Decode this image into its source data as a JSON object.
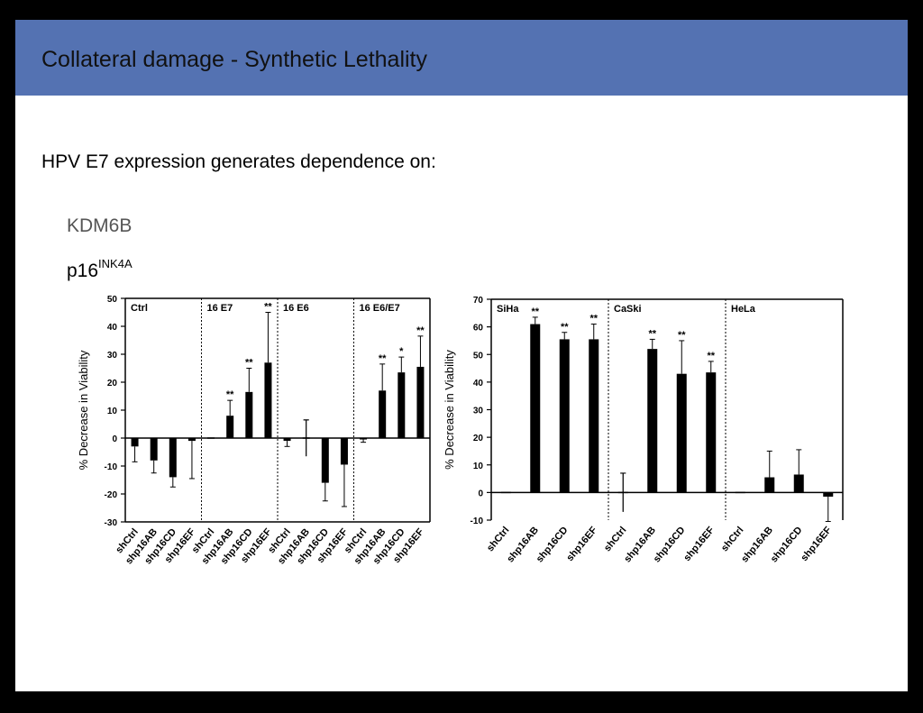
{
  "slide": {
    "title": "Collateral damage - Synthetic Lethality",
    "subtitle": "HPV E7 expression generates dependence  on:",
    "gene_1": "KDM6B",
    "gene_2_base": "p16",
    "gene_2_sup": "INK4A",
    "colors": {
      "title_bar": "#5472b2",
      "bars": "#000000",
      "background": "#ffffff"
    }
  },
  "chart_data": [
    {
      "type": "bar",
      "title": "",
      "ylabel": "% Decrease in Viability",
      "ylim": [
        -30,
        50
      ],
      "yticks": [
        -30,
        -20,
        -10,
        0,
        10,
        20,
        30,
        40,
        50
      ],
      "panels": [
        {
          "label": "Ctrl",
          "categories": [
            "shCtrl",
            "shp16AB",
            "shp16CD",
            "shp16EF"
          ],
          "values": [
            -3,
            -8,
            -14,
            -1
          ],
          "errors": [
            5.5,
            4.5,
            3.5,
            13.5
          ],
          "significance": [
            "",
            "",
            "",
            ""
          ]
        },
        {
          "label": "16 E7",
          "categories": [
            "shCtrl",
            "shp16AB",
            "shp16CD",
            "shp16EF"
          ],
          "values": [
            0,
            8,
            16.5,
            27
          ],
          "errors": [
            0,
            5.5,
            8.5,
            18
          ],
          "significance": [
            "",
            "**",
            "**",
            "**"
          ]
        },
        {
          "label": "16 E6",
          "categories": [
            "shCtrl",
            "shp16AB",
            "shp16CD",
            "shp16EF"
          ],
          "values": [
            -1,
            0,
            -16,
            -9.5
          ],
          "errors": [
            2,
            6.5,
            6.5,
            15
          ],
          "significance": [
            "",
            "",
            "",
            ""
          ]
        },
        {
          "label": "16 E6/E7",
          "categories": [
            "shCtrl",
            "shp16AB",
            "shp16CD",
            "shp16EF"
          ],
          "values": [
            -0.5,
            17,
            23.5,
            25.5
          ],
          "errors": [
            1,
            9.5,
            5.5,
            11
          ],
          "significance": [
            "",
            "**",
            "*",
            "**"
          ]
        }
      ]
    },
    {
      "type": "bar",
      "title": "",
      "ylabel": "% Decrease in Viability",
      "ylim": [
        -10,
        70
      ],
      "yticks": [
        -10,
        0,
        10,
        20,
        30,
        40,
        50,
        60,
        70
      ],
      "panels": [
        {
          "label": "SiHa",
          "categories": [
            "shCtrl",
            "shp16AB",
            "shp16CD",
            "shp16EF"
          ],
          "values": [
            0,
            61,
            55.5,
            55.5
          ],
          "errors": [
            0,
            2.5,
            2.5,
            5.5
          ],
          "significance": [
            "",
            "**",
            "**",
            "**"
          ]
        },
        {
          "label": "CaSki",
          "categories": [
            "shCtrl",
            "shp16AB",
            "shp16CD",
            "shp16EF"
          ],
          "values": [
            0,
            52,
            43,
            43.5
          ],
          "errors": [
            7,
            3.5,
            12,
            4
          ],
          "significance": [
            "",
            "**",
            "**",
            "**"
          ]
        },
        {
          "label": "HeLa",
          "categories": [
            "shCtrl",
            "shp16AB",
            "shp16CD",
            "shp16EF"
          ],
          "values": [
            0,
            5.5,
            6.5,
            -1.5
          ],
          "errors": [
            0,
            9.5,
            9,
            9
          ],
          "significance": [
            "",
            "",
            "",
            ""
          ]
        }
      ]
    }
  ]
}
